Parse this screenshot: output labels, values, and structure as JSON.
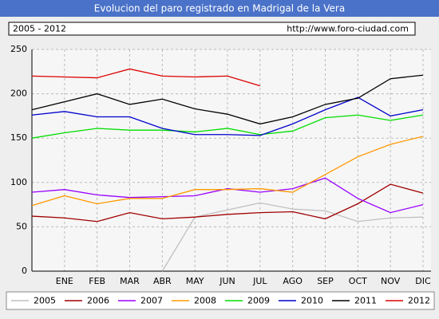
{
  "chart_data": {
    "type": "line",
    "title": "Evolucion del paro registrado en Madrigal de la Vera",
    "period": "2005 - 2012",
    "url": "http://www.foro-ciudad.com",
    "categories": [
      null,
      "ENE",
      "FEB",
      "MAR",
      "ABR",
      "MAY",
      "JUN",
      "JUL",
      "AGO",
      "SEP",
      "OCT",
      "NOV",
      "DIC"
    ],
    "ylim": [
      0,
      250
    ],
    "yticks": [
      0,
      50,
      100,
      150,
      200,
      250
    ],
    "grid": true,
    "series": [
      {
        "name": "2005",
        "color": "#c0c0c0",
        "values": [
          null,
          null,
          null,
          null,
          0,
          61,
          69,
          77,
          70,
          68,
          56,
          60,
          61
        ]
      },
      {
        "name": "2006",
        "color": "#a00000",
        "values": [
          62,
          60,
          56,
          66,
          59,
          61,
          64,
          66,
          67,
          59,
          76,
          98,
          88
        ]
      },
      {
        "name": "2007",
        "color": "#9900ff",
        "values": [
          89,
          92,
          86,
          83,
          84,
          85,
          93,
          89,
          93,
          105,
          82,
          66,
          75
        ]
      },
      {
        "name": "2008",
        "color": "#ff9900",
        "values": [
          74,
          85,
          76,
          82,
          82,
          92,
          92,
          93,
          89,
          109,
          129,
          143,
          152
        ]
      },
      {
        "name": "2009",
        "color": "#00dd00",
        "values": [
          150,
          156,
          161,
          159,
          159,
          157,
          161,
          154,
          158,
          173,
          176,
          170,
          176
        ]
      },
      {
        "name": "2010",
        "color": "#0000cc",
        "values": [
          176,
          180,
          174,
          174,
          161,
          154,
          154,
          153,
          166,
          182,
          196,
          175,
          182
        ]
      },
      {
        "name": "2011",
        "color": "#000000",
        "values": [
          182,
          191,
          200,
          188,
          194,
          183,
          177,
          166,
          174,
          188,
          195,
          217,
          221
        ]
      },
      {
        "name": "2012",
        "color": "#dd0000",
        "values": [
          220,
          219,
          218,
          228,
          220,
          219,
          220,
          209,
          null,
          null,
          null,
          null,
          null
        ]
      }
    ]
  }
}
